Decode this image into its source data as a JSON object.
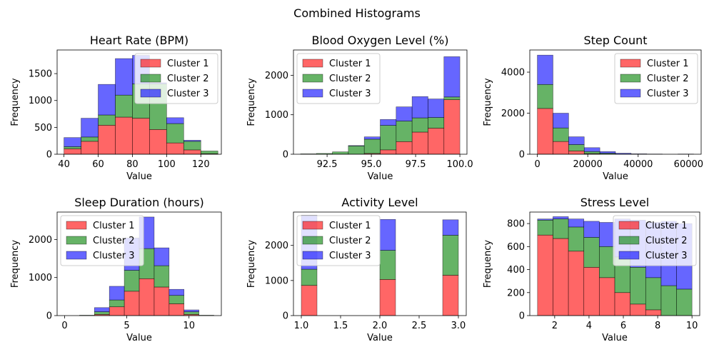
{
  "title": "Combined Histograms",
  "colors": {
    "Cluster 1": "#ff0000",
    "Cluster 2": "#008000",
    "Cluster 3": "#0000ff"
  },
  "chart_data": [
    {
      "type": "bar",
      "stacked": true,
      "title": "Heart Rate (BPM)",
      "xlabel": "Value",
      "ylabel": "Frequency",
      "xlim": [
        36,
        132
      ],
      "ylim": [
        0,
        1940
      ],
      "xticks": [
        40,
        60,
        80,
        100,
        120
      ],
      "xtick_labels": [
        "40",
        "60",
        "80",
        "100",
        "120"
      ],
      "yticks": [
        0,
        500,
        1000,
        1500
      ],
      "ytick_labels": [
        "0",
        "500",
        "1000",
        "1500"
      ],
      "bin_edges": [
        40,
        50,
        60,
        70,
        80,
        90,
        100,
        110,
        120,
        130
      ],
      "series": [
        {
          "name": "Cluster 1",
          "values": [
            100,
            240,
            540,
            690,
            670,
            460,
            210,
            80,
            10
          ]
        },
        {
          "name": "Cluster 2",
          "values": [
            40,
            80,
            190,
            410,
            640,
            850,
            360,
            160,
            50
          ]
        },
        {
          "name": "Cluster 3",
          "values": [
            170,
            350,
            570,
            680,
            530,
            20,
            110,
            20,
            0
          ]
        }
      ],
      "legend": [
        "Cluster 1",
        "Cluster 2",
        "Cluster 3"
      ],
      "legend_position": "top-right"
    },
    {
      "type": "bar",
      "stacked": true,
      "title": "Blood Oxygen Level (%)",
      "xlabel": "Value",
      "ylabel": "Frequency",
      "xlim": [
        90.6,
        100.4
      ],
      "ylim": [
        0,
        2640
      ],
      "xticks": [
        92.5,
        95.0,
        97.5,
        100.0
      ],
      "xtick_labels": [
        "92.5",
        "95.0",
        "97.5",
        "100.0"
      ],
      "yticks": [
        0,
        1000,
        2000
      ],
      "ytick_labels": [
        "0",
        "1000",
        "2000"
      ],
      "bin_edges": [
        91.0,
        91.9,
        92.8,
        93.7,
        94.6,
        95.5,
        96.4,
        97.3,
        98.2,
        99.1,
        100.0
      ],
      "series": [
        {
          "name": "Cluster 1",
          "values": [
            0,
            0,
            0,
            0,
            20,
            110,
            320,
            560,
            660,
            1380
          ]
        },
        {
          "name": "Cluster 2",
          "values": [
            10,
            20,
            60,
            210,
            360,
            620,
            520,
            360,
            270,
            70
          ]
        },
        {
          "name": "Cluster 3",
          "values": [
            0,
            0,
            0,
            10,
            60,
            150,
            360,
            540,
            470,
            1020
          ]
        }
      ],
      "legend": [
        "Cluster 1",
        "Cluster 2",
        "Cluster 3"
      ],
      "legend_position": "top-left"
    },
    {
      "type": "bar",
      "stacked": true,
      "title": "Step Count",
      "xlabel": "Value",
      "ylabel": "Frequency",
      "xlim": [
        -3000,
        65000
      ],
      "ylim": [
        0,
        5080
      ],
      "xticks": [
        0,
        20000,
        40000,
        60000
      ],
      "xtick_labels": [
        "0",
        "20000",
        "40000",
        "60000"
      ],
      "yticks": [
        0,
        2000,
        4000
      ],
      "ytick_labels": [
        "0",
        "2000",
        "4000"
      ],
      "bin_edges": [
        0,
        6200,
        12400,
        18600,
        24800,
        31000,
        37200,
        43400,
        49600,
        55800,
        62000
      ],
      "series": [
        {
          "name": "Cluster 1",
          "values": [
            2230,
            620,
            160,
            30,
            10,
            0,
            0,
            0,
            0,
            0
          ]
        },
        {
          "name": "Cluster 2",
          "values": [
            1170,
            660,
            310,
            100,
            40,
            10,
            0,
            0,
            0,
            0
          ]
        },
        {
          "name": "Cluster 3",
          "values": [
            1430,
            720,
            380,
            190,
            80,
            40,
            20,
            10,
            0,
            10
          ]
        }
      ],
      "legend": [
        "Cluster 1",
        "Cluster 2",
        "Cluster 3"
      ],
      "legend_position": "top-right"
    },
    {
      "type": "bar",
      "stacked": true,
      "title": "Sleep Duration (hours)",
      "xlabel": "Value",
      "ylabel": "Frequency",
      "xlim": [
        -0.6,
        12.6
      ],
      "ylim": [
        0,
        2720
      ],
      "xticks": [
        0,
        5,
        10
      ],
      "xtick_labels": [
        "0",
        "5",
        "10"
      ],
      "yticks": [
        0,
        1000,
        2000
      ],
      "ytick_labels": [
        "0",
        "1000",
        "2000"
      ],
      "bin_edges": [
        0,
        1.2,
        2.4,
        3.6,
        4.8,
        6.0,
        7.2,
        8.4,
        9.6,
        10.8,
        12.0
      ],
      "series": [
        {
          "name": "Cluster 1",
          "values": [
            0,
            0,
            30,
            230,
            640,
            970,
            750,
            310,
            30,
            0
          ]
        },
        {
          "name": "Cluster 2",
          "values": [
            0,
            10,
            70,
            180,
            550,
            790,
            560,
            220,
            70,
            10
          ]
        },
        {
          "name": "Cluster 3",
          "values": [
            0,
            0,
            110,
            360,
            850,
            830,
            470,
            160,
            50,
            0
          ]
        }
      ],
      "legend": [
        "Cluster 1",
        "Cluster 2",
        "Cluster 3"
      ],
      "legend_position": "top-left"
    },
    {
      "type": "bar",
      "stacked": true,
      "title": "Activity Level",
      "xlabel": "Value",
      "ylabel": "Frequency",
      "xlim": [
        0.9,
        3.1
      ],
      "ylim": [
        0,
        2950
      ],
      "xticks": [
        1.0,
        1.5,
        2.0,
        2.5,
        3.0
      ],
      "xtick_labels": [
        "1.0",
        "1.5",
        "2.0",
        "2.5",
        "3.0"
      ],
      "yticks": [
        0,
        1000,
        2000
      ],
      "ytick_labels": [
        "0",
        "1000",
        "2000"
      ],
      "bin_edges": [
        1.0,
        1.2,
        1.4,
        1.6,
        1.8,
        2.0,
        2.2,
        2.4,
        2.6,
        2.8,
        3.0
      ],
      "series": [
        {
          "name": "Cluster 1",
          "values": [
            860,
            0,
            0,
            0,
            0,
            1030,
            0,
            0,
            0,
            1150
          ]
        },
        {
          "name": "Cluster 2",
          "values": [
            460,
            0,
            0,
            0,
            0,
            830,
            0,
            0,
            0,
            1140
          ]
        },
        {
          "name": "Cluster 3",
          "values": [
            1540,
            0,
            0,
            0,
            0,
            880,
            0,
            0,
            0,
            440
          ]
        }
      ],
      "legend": [
        "Cluster 1",
        "Cluster 2",
        "Cluster 3"
      ],
      "legend_position": "top-left"
    },
    {
      "type": "bar",
      "stacked": true,
      "title": "Stress Level",
      "xlabel": "Value",
      "ylabel": "Frequency",
      "xlim": [
        0.55,
        10.45
      ],
      "ylim": [
        0,
        900
      ],
      "xticks": [
        2,
        4,
        6,
        8,
        10
      ],
      "xtick_labels": [
        "2",
        "4",
        "6",
        "8",
        "10"
      ],
      "yticks": [
        0,
        200,
        400,
        600,
        800
      ],
      "ytick_labels": [
        "0",
        "200",
        "400",
        "600",
        "800"
      ],
      "bin_edges": [
        1.0,
        1.9,
        2.8,
        3.7,
        4.6,
        5.5,
        6.4,
        7.3,
        8.2,
        9.1,
        10.0
      ],
      "series": [
        {
          "name": "Cluster 1",
          "values": [
            700,
            670,
            560,
            420,
            330,
            200,
            100,
            50,
            0,
            0
          ]
        },
        {
          "name": "Cluster 2",
          "values": [
            130,
            170,
            210,
            260,
            270,
            310,
            320,
            280,
            260,
            230
          ]
        },
        {
          "name": "Cluster 3",
          "values": [
            10,
            20,
            70,
            140,
            210,
            330,
            410,
            480,
            560,
            570
          ]
        }
      ],
      "legend": [
        "Cluster 1",
        "Cluster 2",
        "Cluster 3"
      ],
      "legend_position": "top-right"
    }
  ]
}
